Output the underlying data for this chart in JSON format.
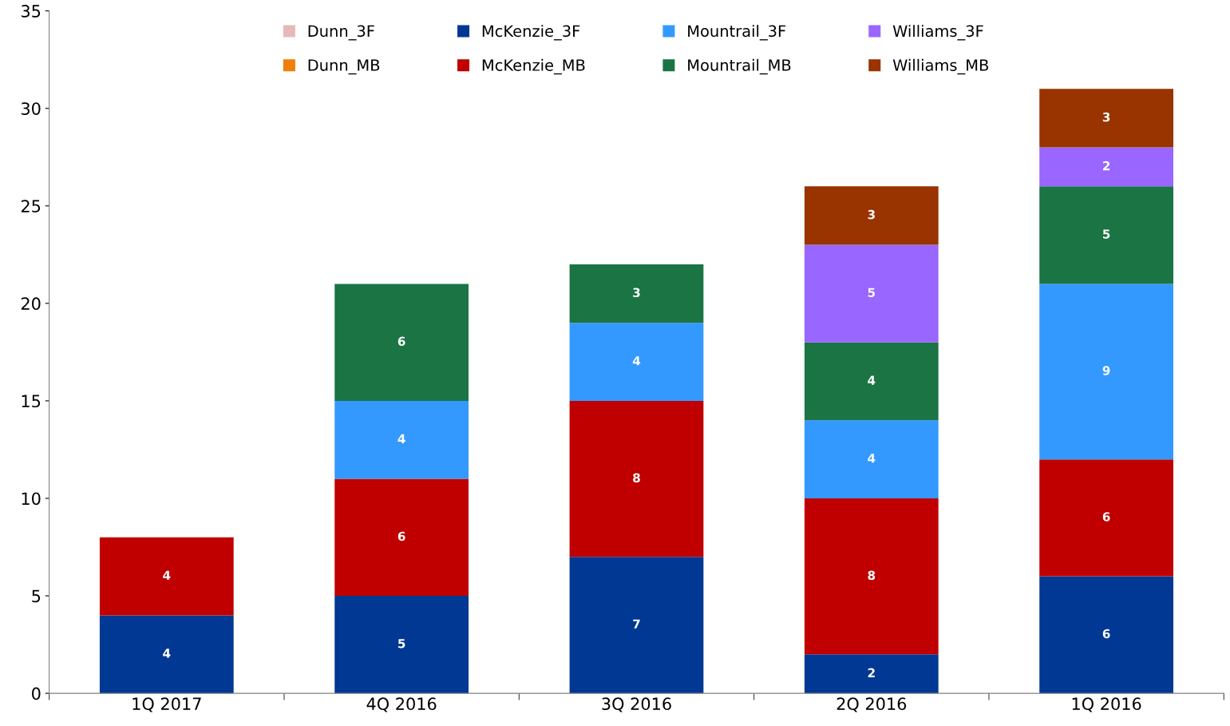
{
  "chart_data": {
    "type": "bar",
    "stacked": true,
    "data_labels": true,
    "grid": false,
    "legend": "top",
    "categories": [
      "1Q 2017",
      "4Q 2016",
      "3Q 2016",
      "2Q 2016",
      "1Q 2016"
    ],
    "ylim": [
      0,
      35
    ],
    "yticks": [
      0,
      5,
      10,
      15,
      20,
      25,
      30,
      35
    ],
    "series": [
      {
        "name": "McKenzie_3F",
        "color": "#003893",
        "values": [
          4,
          5,
          7,
          2,
          6
        ]
      },
      {
        "name": "McKenzie_MB",
        "color": "#c00000",
        "values": [
          4,
          6,
          8,
          8,
          6
        ]
      },
      {
        "name": "Mountrail_3F",
        "color": "#3399ff",
        "values": [
          null,
          4,
          4,
          4,
          9
        ]
      },
      {
        "name": "Mountrail_MB",
        "color": "#1a7444",
        "values": [
          null,
          6,
          3,
          4,
          5
        ]
      },
      {
        "name": "Williams_3F",
        "color": "#9966ff",
        "values": [
          null,
          null,
          null,
          5,
          2
        ]
      },
      {
        "name": "Williams_MB",
        "color": "#993300",
        "values": [
          null,
          null,
          null,
          3,
          3
        ]
      },
      {
        "name": "Dunn_3F",
        "color": "#e6b9b8",
        "values": [
          null,
          null,
          null,
          null,
          null
        ]
      },
      {
        "name": "Dunn_MB",
        "color": "#f07f09",
        "values": [
          null,
          null,
          null,
          null,
          null
        ]
      }
    ]
  }
}
